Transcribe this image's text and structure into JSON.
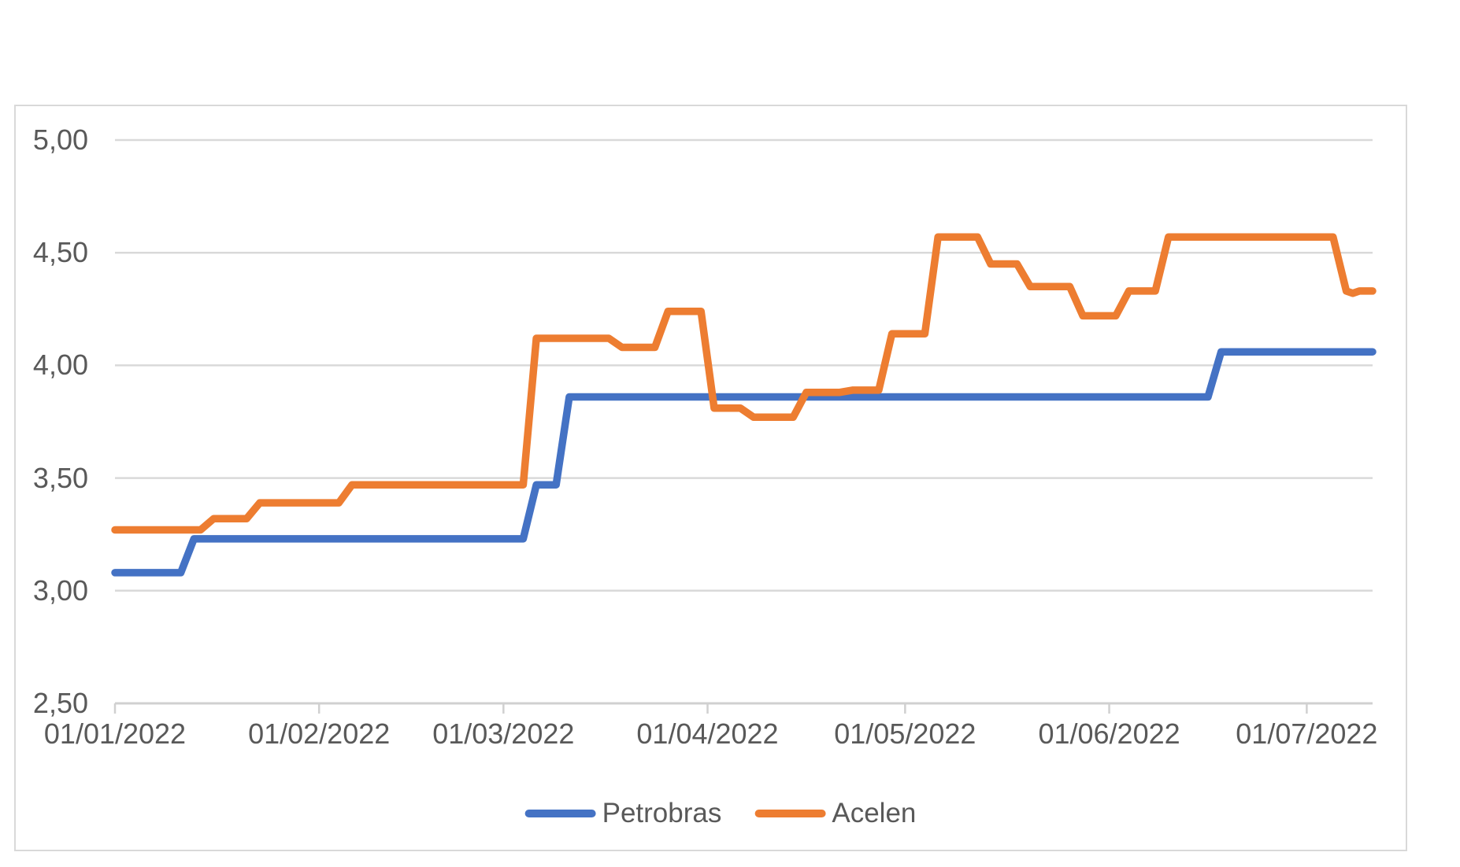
{
  "colors": {
    "petrobras": "#4472C4",
    "acelen": "#ED7D31",
    "gridline": "#D9D9D9",
    "axis_line": "#D0D0D0",
    "label_text": "#595959",
    "frame_border": "#D9D9D9",
    "background": "#FFFFFF"
  },
  "chart_data": {
    "type": "line",
    "title": "",
    "xlabel": "",
    "ylabel": "",
    "grid": true,
    "legend_position": "bottom",
    "decimal_separator": ",",
    "x_axis": {
      "start": "2022-01-01",
      "end": "2022-07-11",
      "tick_dates": [
        "2022-01-01",
        "2022-02-01",
        "2022-03-01",
        "2022-04-01",
        "2022-05-01",
        "2022-06-01",
        "2022-07-01"
      ],
      "labels": [
        "01/01/2022",
        "01/02/2022",
        "01/03/2022",
        "01/04/2022",
        "01/05/2022",
        "01/06/2022",
        "01/07/2022"
      ]
    },
    "y_axis": {
      "min": 2.5,
      "max": 5.0,
      "step": 0.5,
      "tick_values": [
        5.0,
        4.5,
        4.0,
        3.5,
        3.0,
        2.5
      ],
      "tick_labels": [
        "5,00",
        "4,50",
        "4,00",
        "3,50",
        "3,00",
        "2,50"
      ]
    },
    "series": [
      {
        "name": "Petrobras",
        "color": "#4472C4",
        "points": [
          [
            "2022-01-01",
            3.08
          ],
          [
            "2022-01-11",
            3.08
          ],
          [
            "2022-01-13",
            3.23
          ],
          [
            "2022-03-04",
            3.23
          ],
          [
            "2022-03-06",
            3.47
          ],
          [
            "2022-03-09",
            3.47
          ],
          [
            "2022-03-11",
            3.86
          ],
          [
            "2022-06-16",
            3.86
          ],
          [
            "2022-06-18",
            4.06
          ],
          [
            "2022-07-11",
            4.06
          ]
        ]
      },
      {
        "name": "Acelen",
        "color": "#ED7D31",
        "points": [
          [
            "2022-01-01",
            3.27
          ],
          [
            "2022-01-14",
            3.27
          ],
          [
            "2022-01-16",
            3.32
          ],
          [
            "2022-01-21",
            3.32
          ],
          [
            "2022-01-23",
            3.39
          ],
          [
            "2022-02-04",
            3.39
          ],
          [
            "2022-02-06",
            3.47
          ],
          [
            "2022-03-04",
            3.47
          ],
          [
            "2022-03-06",
            4.12
          ],
          [
            "2022-03-17",
            4.12
          ],
          [
            "2022-03-19",
            4.08
          ],
          [
            "2022-03-24",
            4.08
          ],
          [
            "2022-03-26",
            4.24
          ],
          [
            "2022-03-31",
            4.24
          ],
          [
            "2022-04-02",
            3.81
          ],
          [
            "2022-04-06",
            3.81
          ],
          [
            "2022-04-08",
            3.77
          ],
          [
            "2022-04-14",
            3.77
          ],
          [
            "2022-04-16",
            3.88
          ],
          [
            "2022-04-21",
            3.88
          ],
          [
            "2022-04-23",
            3.89
          ],
          [
            "2022-04-27",
            3.89
          ],
          [
            "2022-04-29",
            4.14
          ],
          [
            "2022-05-04",
            4.14
          ],
          [
            "2022-05-06",
            4.57
          ],
          [
            "2022-05-12",
            4.57
          ],
          [
            "2022-05-14",
            4.45
          ],
          [
            "2022-05-18",
            4.45
          ],
          [
            "2022-05-20",
            4.35
          ],
          [
            "2022-05-26",
            4.35
          ],
          [
            "2022-05-28",
            4.22
          ],
          [
            "2022-06-02",
            4.22
          ],
          [
            "2022-06-04",
            4.33
          ],
          [
            "2022-06-08",
            4.33
          ],
          [
            "2022-06-10",
            4.57
          ],
          [
            "2022-07-05",
            4.57
          ],
          [
            "2022-07-07",
            4.33
          ],
          [
            "2022-07-08",
            4.32
          ],
          [
            "2022-07-09",
            4.33
          ],
          [
            "2022-07-11",
            4.33
          ]
        ]
      }
    ]
  }
}
